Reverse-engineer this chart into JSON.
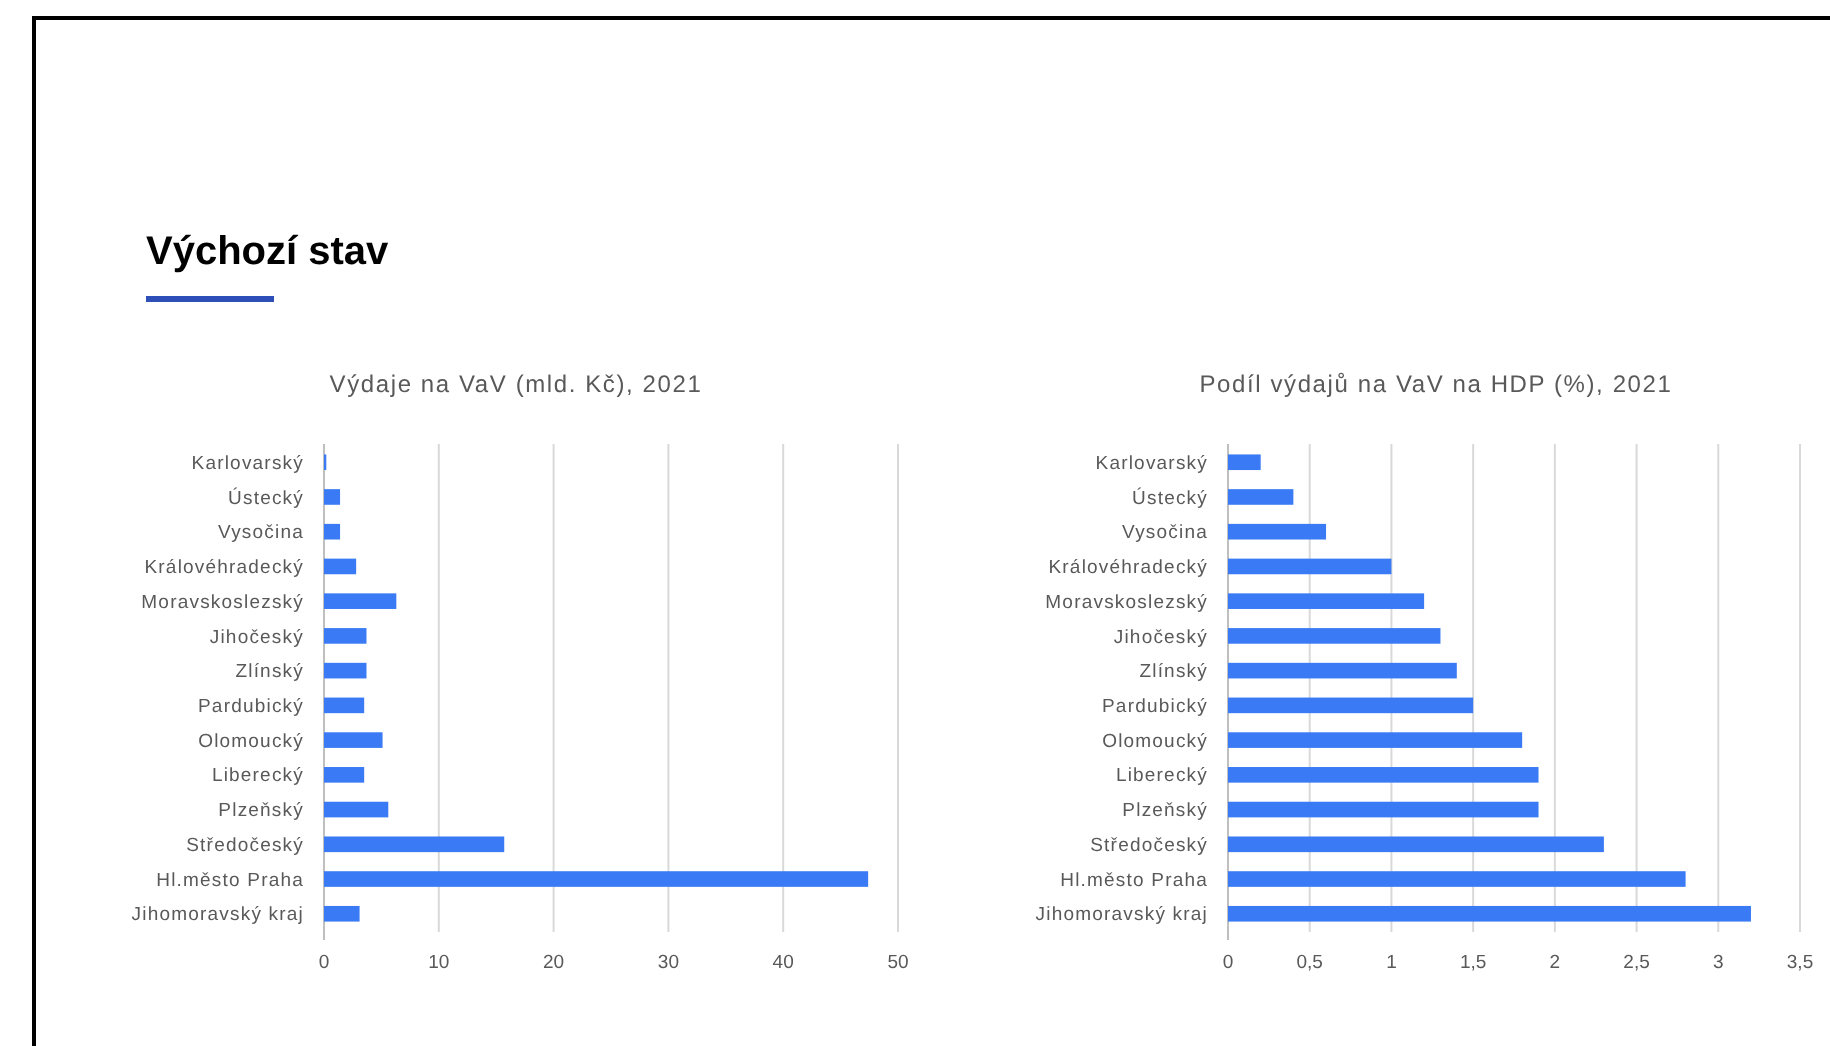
{
  "chart_data": [
    {
      "type": "bar",
      "orientation": "horizontal",
      "title": "Výdaje na VaV (mld. Kč), 2021",
      "annotations": [
        "Výchozí stav"
      ],
      "categories": [
        "Karlovarský",
        "Ústecký",
        "Vysočina",
        "Královéhradecký",
        "Moravskoslezský",
        "Jihočeský",
        "Zlínský",
        "Pardubický",
        "Olomoucký",
        "Liberecký",
        "Plzeňský",
        "Středočeský",
        "Hl.město Praha",
        "Jihomoravský kraj"
      ],
      "values": [
        0.2,
        1.4,
        1.4,
        2.8,
        6.3,
        3.7,
        3.7,
        3.5,
        5.1,
        3.5,
        5.6,
        15.7,
        47.4,
        3.1
      ],
      "color": "#3a7bf5",
      "xlim": [
        0,
        50
      ],
      "xticks": [
        0,
        10,
        20,
        30,
        40,
        50
      ],
      "grid": "x"
    },
    {
      "type": "bar",
      "orientation": "horizontal",
      "title": "Podíl výdajů na VaV na HDP (%), 2021",
      "categories": [
        "Karlovarský",
        "Ústecký",
        "Vysočina",
        "Královéhradecký",
        "Moravskoslezský",
        "Jihočeský",
        "Zlínský",
        "Pardubický",
        "Olomoucký",
        "Liberecký",
        "Plzeňský",
        "Středočeský",
        "Hl.město Praha",
        "Jihomoravský kraj"
      ],
      "values": [
        0.2,
        0.4,
        0.6,
        1.0,
        1.2,
        1.3,
        1.4,
        1.5,
        1.8,
        1.9,
        1.9,
        2.3,
        2.8,
        3.2
      ],
      "color": "#3a7bf5",
      "xlim": [
        0,
        3.5
      ],
      "xticks": [
        0,
        {
          "value": 0.5,
          "label": "0,5"
        },
        1,
        {
          "value": 1.5,
          "label": "1,5"
        },
        2,
        {
          "value": 2.5,
          "label": "2,5"
        },
        3,
        {
          "value": 3.5,
          "label": "3,5"
        }
      ],
      "grid": "x"
    }
  ]
}
